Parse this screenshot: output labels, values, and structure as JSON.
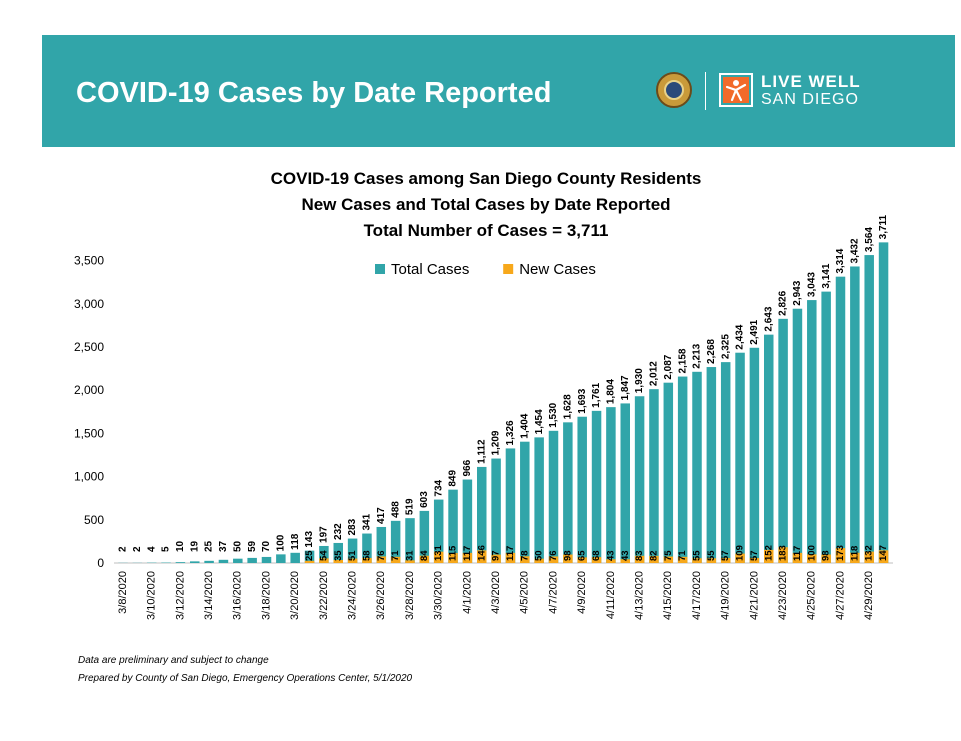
{
  "header": {
    "title": "COVID-19 Cases by Date Reported",
    "brand_line1": "LIVE WELL",
    "brand_line2": "SAN DIEGO",
    "background_color": "#31a5a9"
  },
  "chart_data": {
    "type": "bar",
    "title_lines": [
      "COVID-19 Cases among San Diego County Residents",
      "New Cases and Total Cases by Date Reported",
      "Total Number of Cases = 3,711"
    ],
    "categories": [
      "3/8/2020",
      "3/9/2020",
      "3/10/2020",
      "3/11/2020",
      "3/12/2020",
      "3/13/2020",
      "3/14/2020",
      "3/15/2020",
      "3/16/2020",
      "3/17/2020",
      "3/18/2020",
      "3/19/2020",
      "3/20/2020",
      "3/21/2020",
      "3/22/2020",
      "3/23/2020",
      "3/24/2020",
      "3/25/2020",
      "3/26/2020",
      "3/27/2020",
      "3/28/2020",
      "3/29/2020",
      "3/30/2020",
      "3/31/2020",
      "4/1/2020",
      "4/2/2020",
      "4/3/2020",
      "4/4/2020",
      "4/5/2020",
      "4/6/2020",
      "4/7/2020",
      "4/8/2020",
      "4/9/2020",
      "4/10/2020",
      "4/11/2020",
      "4/12/2020",
      "4/13/2020",
      "4/14/2020",
      "4/15/2020",
      "4/16/2020",
      "4/17/2020",
      "4/18/2020",
      "4/19/2020",
      "4/20/2020",
      "4/21/2020",
      "4/22/2020",
      "4/23/2020",
      "4/24/2020",
      "4/25/2020",
      "4/26/2020",
      "4/27/2020",
      "4/28/2020",
      "4/29/2020",
      "4/30/2020"
    ],
    "x_tick_labels": [
      "3/8/2020",
      "3/10/2020",
      "3/12/2020",
      "3/14/2020",
      "3/16/2020",
      "3/18/2020",
      "3/20/2020",
      "3/22/2020",
      "3/24/2020",
      "3/26/2020",
      "3/28/2020",
      "3/30/2020",
      "4/1/2020",
      "4/3/2020",
      "4/5/2020",
      "4/7/2020",
      "4/9/2020",
      "4/11/2020",
      "4/13/2020",
      "4/15/2020",
      "4/17/2020",
      "4/19/2020",
      "4/21/2020",
      "4/23/2020",
      "4/25/2020",
      "4/27/2020",
      "4/29/2020"
    ],
    "series": [
      {
        "name": "Total Cases",
        "color": "#31a5a9",
        "values": [
          2,
          2,
          4,
          5,
          10,
          19,
          25,
          37,
          50,
          59,
          70,
          100,
          118,
          143,
          197,
          232,
          283,
          341,
          417,
          488,
          519,
          603,
          734,
          849,
          966,
          1112,
          1209,
          1326,
          1404,
          1454,
          1530,
          1628,
          1693,
          1761,
          1804,
          1847,
          1930,
          2012,
          2087,
          2158,
          2213,
          2268,
          2325,
          2434,
          2491,
          2643,
          2826,
          2943,
          3043,
          3141,
          3314,
          3432,
          3564,
          3711
        ],
        "labels": [
          "2",
          "2",
          "4",
          "5",
          "10",
          "19",
          "25",
          "37",
          "50",
          "59",
          "70",
          "100",
          "118",
          "143",
          "197",
          "232",
          "283",
          "341",
          "417",
          "488",
          "519",
          "603",
          "734",
          "849",
          "966",
          "1,112",
          "1,209",
          "1,326",
          "1,404",
          "1,454",
          "1,530",
          "1,628",
          "1,693",
          "1,761",
          "1,804",
          "1,847",
          "1,930",
          "2,012",
          "2,087",
          "2,158",
          "2,213",
          "2,268",
          "2,325",
          "2,434",
          "2,491",
          "2,643",
          "2,826",
          "2,943",
          "3,043",
          "3,141",
          "3,314",
          "3,432",
          "3,564",
          "3,711"
        ]
      },
      {
        "name": "New Cases",
        "color": "#f7a81b",
        "values": [
          null,
          null,
          null,
          null,
          null,
          null,
          null,
          null,
          null,
          null,
          null,
          null,
          null,
          25,
          54,
          35,
          51,
          58,
          76,
          71,
          31,
          84,
          131,
          115,
          117,
          146,
          97,
          117,
          78,
          50,
          76,
          98,
          65,
          68,
          43,
          43,
          83,
          82,
          75,
          71,
          55,
          55,
          57,
          109,
          57,
          152,
          183,
          117,
          100,
          98,
          173,
          118,
          132,
          147
        ]
      }
    ],
    "ylim": [
      0,
      3750
    ],
    "y_ticks": [
      0,
      500,
      1000,
      1500,
      2000,
      2500,
      3000,
      3500
    ],
    "y_tick_labels": [
      "0",
      "500",
      "1,000",
      "1,500",
      "2,000",
      "2,500",
      "3,000",
      "3,500"
    ],
    "legend_position": "top-center",
    "grid": false
  },
  "footnotes": [
    "Data are preliminary and subject to change",
    "Prepared by County of San Diego, Emergency Operations Center, 5/1/2020"
  ]
}
